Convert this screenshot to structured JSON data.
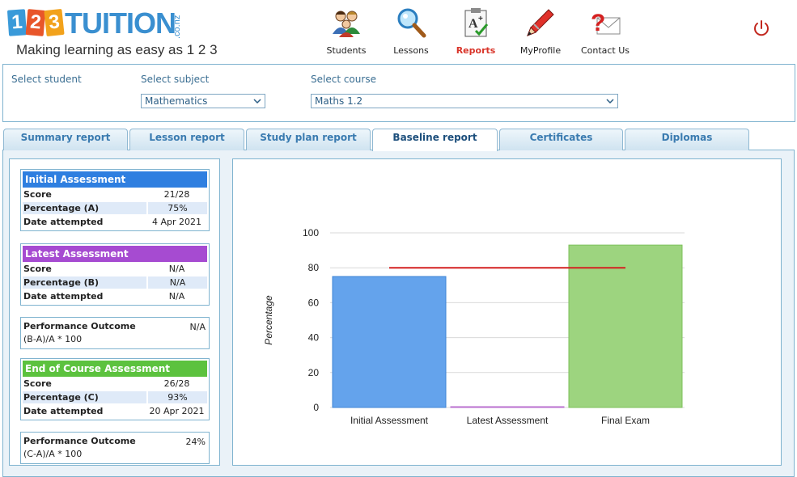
{
  "header": {
    "logo_digits": [
      "1",
      "2",
      "3"
    ],
    "logo_brand": "TUITION",
    "logo_suffix": ".co.nz",
    "tagline": "Making learning as easy as 1 2 3",
    "nav": [
      {
        "label": "Students",
        "icon": "students-icon"
      },
      {
        "label": "Lessons",
        "icon": "magnifier-icon"
      },
      {
        "label": "Reports",
        "icon": "report-card-icon",
        "active": true
      },
      {
        "label": "MyProfile",
        "icon": "pen-icon"
      },
      {
        "label": "Contact Us",
        "icon": "help-mail-icon"
      }
    ],
    "power_icon": "power-icon",
    "accent_color": "#d9352a"
  },
  "selectors": {
    "student_label": "Select student",
    "subject_label": "Select subject",
    "subject_value": "Mathematics",
    "course_label": "Select course",
    "course_value": "Maths 1.2"
  },
  "tabs": [
    {
      "label": "Summary report"
    },
    {
      "label": "Lesson report"
    },
    {
      "label": "Study plan report"
    },
    {
      "label": "Baseline report",
      "active": true
    },
    {
      "label": "Certificates"
    },
    {
      "label": "Diplomas"
    }
  ],
  "initial": {
    "title": "Initial Assessment",
    "color": "#2f7fe0",
    "score_label": "Score",
    "score": "21/28",
    "pct_label": "Percentage (A)",
    "pct": "75%",
    "date_label": "Date attempted",
    "date": "4 Apr 2021"
  },
  "latest": {
    "title": "Latest Assessment",
    "color": "#a64bd1",
    "score_label": "Score",
    "score": "N/A",
    "pct_label": "Percentage (B)",
    "pct": "N/A",
    "date_label": "Date attempted",
    "date": "N/A"
  },
  "perf1": {
    "title": "Performance Outcome",
    "value": "N/A",
    "formula": "(B-A)/A * 100"
  },
  "final": {
    "title": "End of Course Assessment",
    "color": "#5cc23e",
    "score_label": "Score",
    "score": "26/28",
    "pct_label": "Percentage (C)",
    "pct": "93%",
    "date_label": "Date attempted",
    "date": "20 Apr 2021"
  },
  "perf2": {
    "title": "Performance Outcome",
    "value": "24%",
    "formula": "(C-A)/A * 100"
  },
  "chart_data": {
    "type": "bar",
    "categories": [
      "Initial Assessment",
      "Latest Assessment",
      "Final Exam"
    ],
    "values": [
      75,
      0,
      93
    ],
    "colors": [
      "#64a3ec",
      "#cf8fe0",
      "#9dd47f"
    ],
    "border_colors": [
      "#3f84d6",
      "#b96fcf",
      "#7cc05a"
    ],
    "ylabel": "Percentage",
    "ylim": [
      0,
      100
    ],
    "yticks": [
      0,
      20,
      40,
      60,
      80,
      100
    ],
    "target_line": {
      "value": 80,
      "color": "#d42020"
    },
    "grid": true
  }
}
